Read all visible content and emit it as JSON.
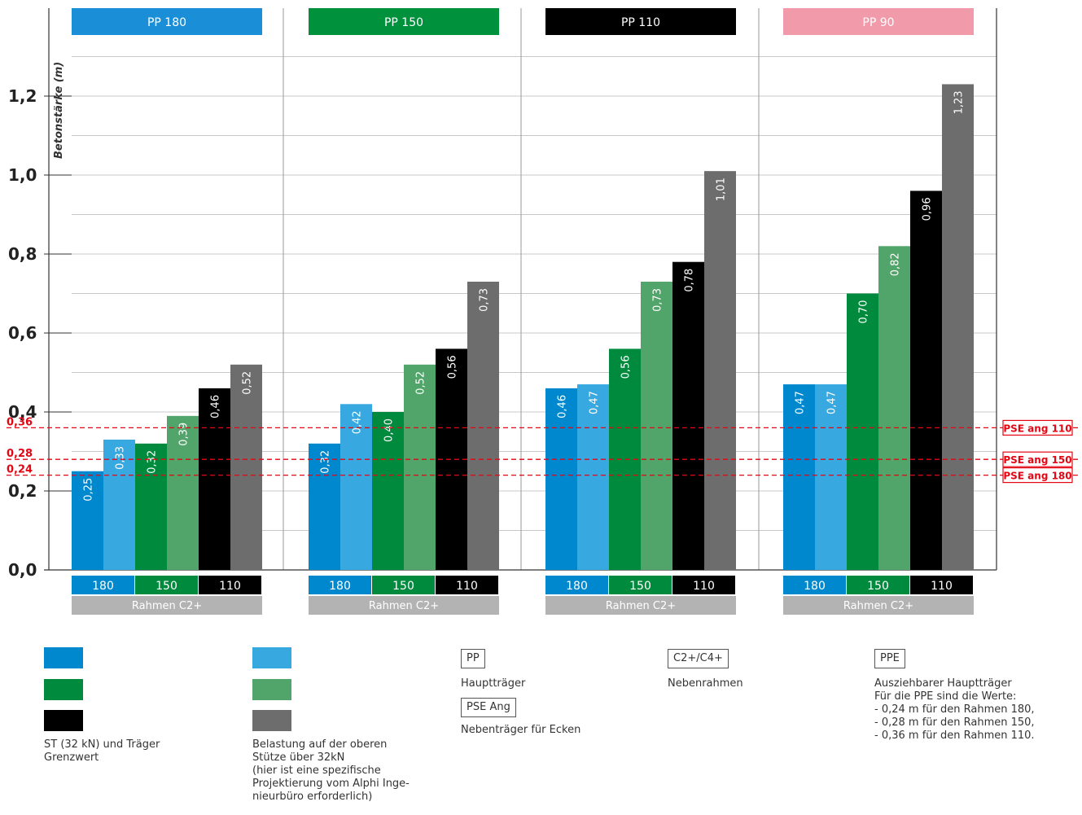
{
  "chart_data": {
    "type": "bar",
    "ylabel": "Betonstärke (m)",
    "ylim": [
      0,
      1.3
    ],
    "y_ticks": [
      "0,0",
      "0,2",
      "0,4",
      "0,6",
      "0,8",
      "1,0",
      "1,2"
    ],
    "grid": true,
    "groups": [
      {
        "title": "PP 180",
        "color": "#1a8fd8",
        "values": [
          0.25,
          0.33,
          0.32,
          0.39,
          0.46,
          0.52
        ],
        "labels": [
          "0,25",
          "0,33",
          "0,32",
          "0,39",
          "0,46",
          "0,52"
        ]
      },
      {
        "title": "PP 150",
        "color": "#00913c",
        "values": [
          0.32,
          0.42,
          0.4,
          0.52,
          0.56,
          0.73
        ],
        "labels": [
          "0,32",
          "0,42",
          "0,40",
          "0,52",
          "0,56",
          "0,73"
        ]
      },
      {
        "title": "PP 110",
        "color": "#000000",
        "values": [
          0.46,
          0.47,
          0.56,
          0.73,
          0.78,
          1.01
        ],
        "labels": [
          "0,46",
          "0,47",
          "0,56",
          "0,73",
          "0,78",
          "1,01"
        ]
      },
      {
        "title": "PP 90",
        "color": "#f19aaa",
        "values": [
          0.47,
          0.47,
          0.7,
          0.82,
          0.96,
          1.23
        ],
        "labels": [
          "0,47",
          "0,47",
          "0,70",
          "0,82",
          "0,96",
          "1,23"
        ]
      }
    ],
    "bar_colors": [
      "#0088cf",
      "#37a9e0",
      "#008a3d",
      "#52a56a",
      "#000000",
      "#6d6d6d"
    ],
    "sub_categories": [
      {
        "label": "180",
        "color": "#0088cf"
      },
      {
        "label": "150",
        "color": "#008a3d"
      },
      {
        "label": "110",
        "color": "#000000"
      }
    ],
    "frame_label": "Rahmen C2+",
    "frame_color": "#b3b3b3",
    "reference_lines": [
      {
        "value": 0.36,
        "label": "0,36",
        "tag": "PSE ang 110"
      },
      {
        "value": 0.28,
        "label": "0,28",
        "tag": "PSE ang 150"
      },
      {
        "value": 0.24,
        "label": "0,24",
        "tag": "PSE ang 180"
      }
    ],
    "reference_color": "#e30613"
  },
  "legend": {
    "col1_colors": [
      "#0088cf",
      "#008a3d",
      "#000000"
    ],
    "col1_text": "ST (32 kN) und Träger\nGrenzwert",
    "col2_colors": [
      "#37a9e0",
      "#52a56a",
      "#6d6d6d"
    ],
    "col2_text": "Belastung auf der oberen\nStütze über 32kN\n(hier ist eine spezifische\nProjektierung vom Alphi Inge-\nnieurbüro erforderlich)",
    "pp_box": "PP",
    "pp_text": "Hauptträger",
    "pse_box": "PSE Ang",
    "pse_text": "Nebenträger für Ecken",
    "c2_box": "C2+/C4+",
    "c2_text": "Nebenrahmen",
    "ppe_box": "PPE",
    "ppe_text": "Ausziehbarer Hauptträger\nFür die PPE sind die Werte:\n- 0,24 m für den Rahmen 180,\n- 0,28 m für den Rahmen 150,\n- 0,36 m für den Rahmen 110."
  }
}
